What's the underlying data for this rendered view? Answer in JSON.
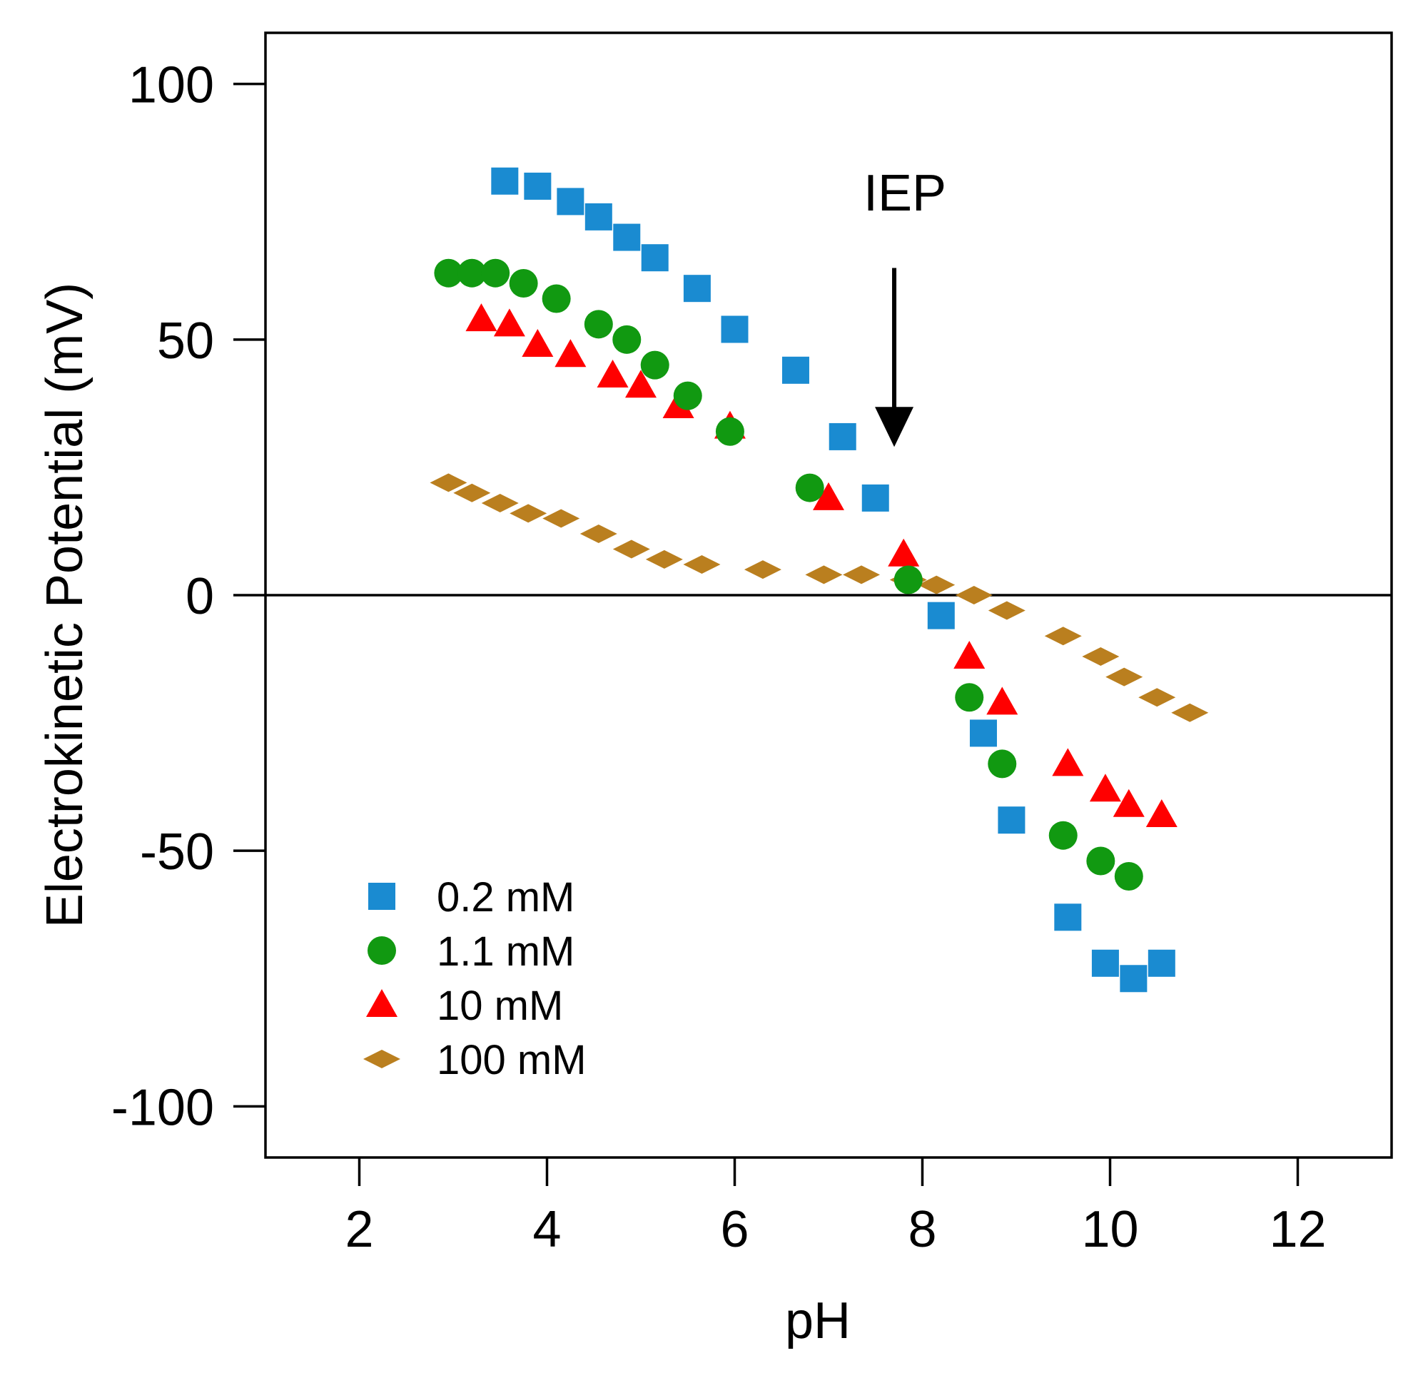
{
  "chart_data": {
    "type": "scatter",
    "title": "",
    "xlabel": "pH",
    "ylabel": "Electrokinetic Potential (mV)",
    "xlim": [
      1,
      13
    ],
    "ylim": [
      -110,
      110
    ],
    "xticks": [
      2,
      4,
      6,
      8,
      10,
      12
    ],
    "yticks": [
      100,
      50,
      0,
      -50,
      -100
    ],
    "xtick_labels": [
      "2",
      "4",
      "6",
      "8",
      "10",
      "12"
    ],
    "ytick_labels": [
      "100",
      "50",
      "0",
      "-50",
      "-100"
    ],
    "zero_line": 0,
    "grid": false,
    "legend_position": "bottom-left",
    "annotation": {
      "text": "IEP",
      "x": 7.7,
      "arrow_from_y": 64,
      "arrow_to_y": 29
    },
    "series": [
      {
        "name": "0.2 mM",
        "marker": "square",
        "color": "#1a8bd1",
        "x": [
          3.55,
          3.9,
          4.25,
          4.55,
          4.85,
          5.15,
          5.6,
          6.0,
          6.65,
          7.15,
          7.5,
          8.2,
          8.65,
          8.95,
          9.55,
          9.95,
          10.25,
          10.55
        ],
        "y": [
          81,
          80,
          77,
          74,
          70,
          66,
          60,
          52,
          44,
          31,
          19,
          -4,
          -27,
          -44,
          -63,
          -72,
          -75,
          -72
        ]
      },
      {
        "name": "1.1 mM",
        "marker": "circle",
        "color": "#119911",
        "x": [
          2.95,
          3.2,
          3.45,
          3.75,
          4.1,
          4.55,
          4.85,
          5.15,
          5.5,
          5.95,
          6.8,
          7.85,
          8.5,
          8.85,
          9.5,
          9.9,
          10.2
        ],
        "y": [
          63,
          63,
          63,
          61,
          58,
          53,
          50,
          45,
          39,
          32,
          21,
          3,
          -20,
          -33,
          -47,
          -52,
          -55
        ]
      },
      {
        "name": "10 mM",
        "marker": "triangle",
        "color": "#ff0000",
        "x": [
          3.3,
          3.6,
          3.9,
          4.25,
          4.7,
          5.0,
          5.4,
          5.95,
          7.0,
          7.8,
          8.5,
          8.85,
          9.55,
          9.95,
          10.2,
          10.55
        ],
        "y": [
          54,
          53,
          49,
          47,
          43,
          41,
          37,
          33,
          19,
          8,
          -12,
          -21,
          -33,
          -38,
          -41,
          -43
        ]
      },
      {
        "name": "100 mM",
        "marker": "diamond",
        "color": "#ba7f1f",
        "x": [
          2.95,
          3.2,
          3.5,
          3.8,
          4.15,
          4.55,
          4.9,
          5.25,
          5.65,
          6.3,
          6.95,
          7.35,
          7.85,
          8.15,
          8.55,
          8.9,
          9.5,
          9.9,
          10.15,
          10.5,
          10.85
        ],
        "y": [
          22,
          20,
          18,
          16,
          15,
          12,
          9,
          7,
          6,
          5,
          4,
          4,
          3,
          2,
          0,
          -3,
          -8,
          -12,
          -16,
          -20,
          -23
        ]
      }
    ]
  }
}
